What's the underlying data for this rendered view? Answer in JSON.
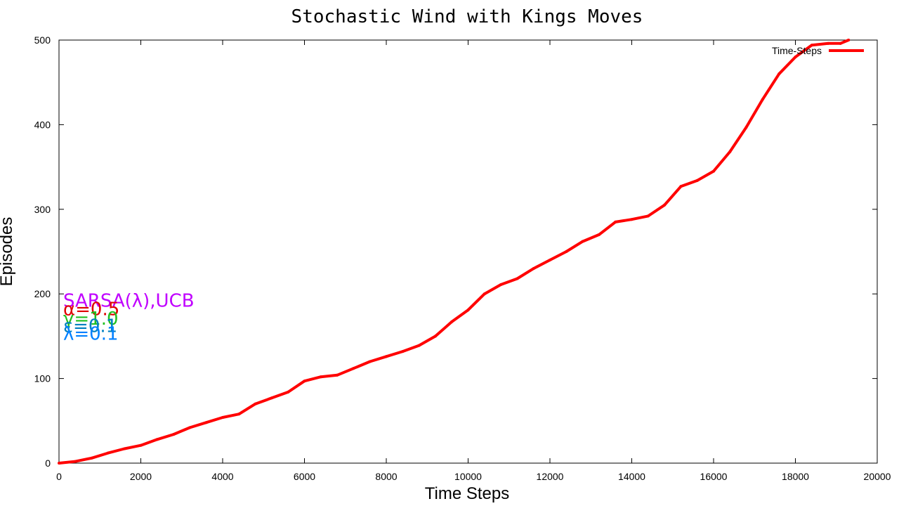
{
  "chart_data": {
    "type": "line",
    "title": "Stochastic Wind with Kings Moves",
    "xlabel": "Time Steps",
    "ylabel": "Episodes",
    "xlim": [
      0,
      20000
    ],
    "ylim": [
      0,
      500
    ],
    "xticks": [
      "0",
      "2000",
      "4000",
      "6000",
      "8000",
      "10000",
      "12000",
      "14000",
      "16000",
      "18000",
      "20000"
    ],
    "yticks": [
      "0",
      "100",
      "200",
      "300",
      "400",
      "500"
    ],
    "grid": false,
    "legend_position": "top-right",
    "annotations": [
      {
        "text": "SARSA(λ),UCB",
        "color": "#c000ff",
        "y": 193
      },
      {
        "text": "α=0.5",
        "color": "#e00000",
        "y": 183
      },
      {
        "text": "γ=1.0",
        "color": "#20c020",
        "y": 172
      },
      {
        "text": "ε=0.1",
        "color": "#0080c0",
        "y": 163
      },
      {
        "text": "λ=0.1",
        "color": "#0080ff",
        "y": 154
      }
    ],
    "series": [
      {
        "name": "Time-Steps",
        "color": "#ff0000",
        "x": [
          0,
          400,
          800,
          1200,
          1600,
          2000,
          2400,
          2800,
          3200,
          3600,
          4000,
          4400,
          4800,
          5200,
          5600,
          6000,
          6400,
          6800,
          7200,
          7600,
          8000,
          8400,
          8800,
          9200,
          9600,
          10000,
          10400,
          10800,
          11200,
          11600,
          12000,
          12400,
          12800,
          13200,
          13600,
          14000,
          14400,
          14800,
          15200,
          15600,
          16000,
          16400,
          16800,
          17200,
          17600,
          18000,
          18400,
          18800,
          19100,
          19300
        ],
        "y": [
          0,
          2,
          6,
          12,
          17,
          21,
          28,
          34,
          42,
          48,
          54,
          58,
          70,
          77,
          84,
          97,
          102,
          104,
          112,
          120,
          126,
          132,
          139,
          150,
          167,
          181,
          200,
          211,
          218,
          230,
          240,
          250,
          262,
          270,
          285,
          288,
          292,
          305,
          327,
          334,
          345,
          368,
          397,
          430,
          460,
          480,
          494,
          496,
          496,
          500
        ]
      }
    ]
  }
}
